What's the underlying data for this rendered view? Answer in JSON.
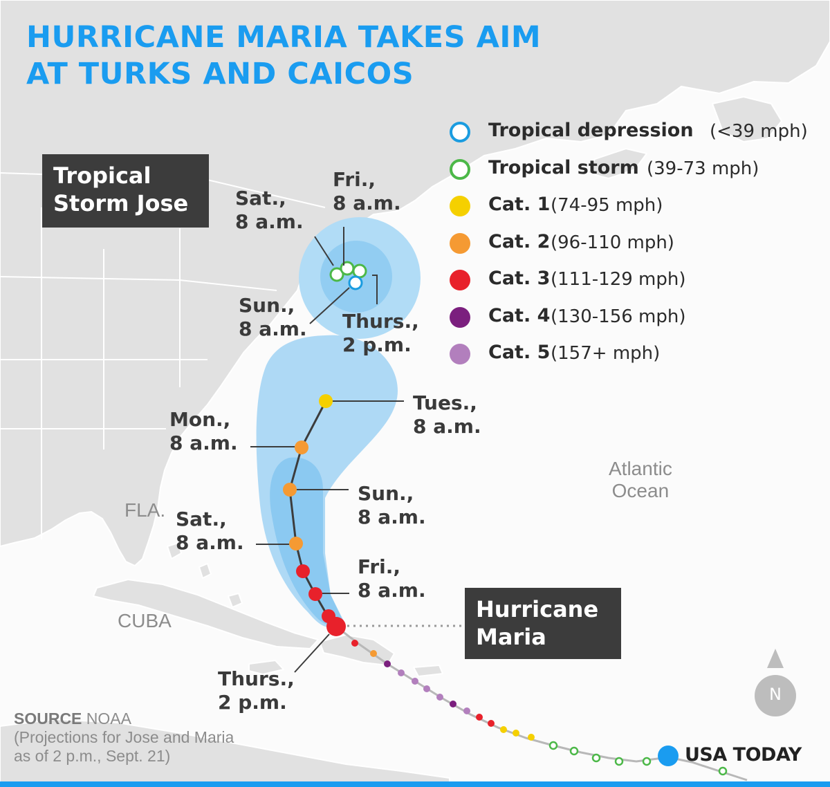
{
  "title": {
    "line1": "HURRICANE MARIA TAKES AIM",
    "line2": "AT TURKS AND CAICOS"
  },
  "legend": [
    {
      "name": "Tropical depression",
      "range": "(<39 mph)",
      "style": "ring",
      "color": "#1a9ce0"
    },
    {
      "name": "Tropical storm",
      "range": "(39-73 mph)",
      "style": "ring",
      "color": "#4cb848"
    },
    {
      "name": "Cat. 1",
      "range": "(74-95 mph)",
      "style": "dot",
      "color": "#f5d000"
    },
    {
      "name": "Cat. 2",
      "range": "(96-110 mph)",
      "style": "dot",
      "color": "#f59a33"
    },
    {
      "name": "Cat. 3",
      "range": "(111-129 mph)",
      "style": "dot",
      "color": "#e8212b"
    },
    {
      "name": "Cat. 4",
      "range": "(130-156 mph)",
      "style": "dot",
      "color": "#7b1f7e"
    },
    {
      "name": "Cat. 5",
      "range": "(157+ mph)",
      "style": "dot",
      "color": "#b27fbd"
    }
  ],
  "storms": {
    "jose": {
      "label_line1": "Tropical",
      "label_line2": "Storm Jose",
      "points": [
        {
          "label_day": "Thurs.,",
          "label_time": "2 p.m.",
          "category": "Tropical storm"
        },
        {
          "label_day": "Fri.,",
          "label_time": "8 a.m.",
          "category": "Tropical storm"
        },
        {
          "label_day": "Sat.,",
          "label_time": "8 a.m.",
          "category": "Tropical storm"
        },
        {
          "label_day": "Sun.,",
          "label_time": "8 a.m.",
          "category": "Tropical depression"
        }
      ]
    },
    "maria": {
      "label_line1": "Hurricane",
      "label_line2": "Maria",
      "points": [
        {
          "label_day": "Thurs.,",
          "label_time": "2 p.m.",
          "category": "Cat. 3"
        },
        {
          "label_day": "Fri.,",
          "label_time": "8 a.m.",
          "category": "Cat. 3"
        },
        {
          "label_day": "Sat.,",
          "label_time": "8 a.m.",
          "category": "Cat. 2"
        },
        {
          "label_day": "Sun.,",
          "label_time": "8 a.m.",
          "category": "Cat. 2"
        },
        {
          "label_day": "Mon.,",
          "label_time": "8 a.m.",
          "category": "Cat. 2"
        },
        {
          "label_day": "Tues.,",
          "label_time": "8 a.m.",
          "category": "Cat. 1"
        }
      ]
    }
  },
  "places": {
    "fla": "FLA.",
    "cuba": "CUBA",
    "ocean_line1": "Atlantic",
    "ocean_line2": "Ocean"
  },
  "compass": {
    "label": "N"
  },
  "source": {
    "label": "SOURCE",
    "name": "NOAA",
    "note_line1": "(Projections for Jose and Maria",
    "note_line2": "as of 2 p.m., Sept. 21)"
  },
  "logo": "USA TODAY",
  "colors": {
    "accent": "#1a9cf0",
    "cone": "#a9d8f5",
    "cone_inner": "#84c4f0",
    "land": "#e0e0e0",
    "label_box": "#3c3c3c",
    "track_past": "#b8b8b8"
  }
}
